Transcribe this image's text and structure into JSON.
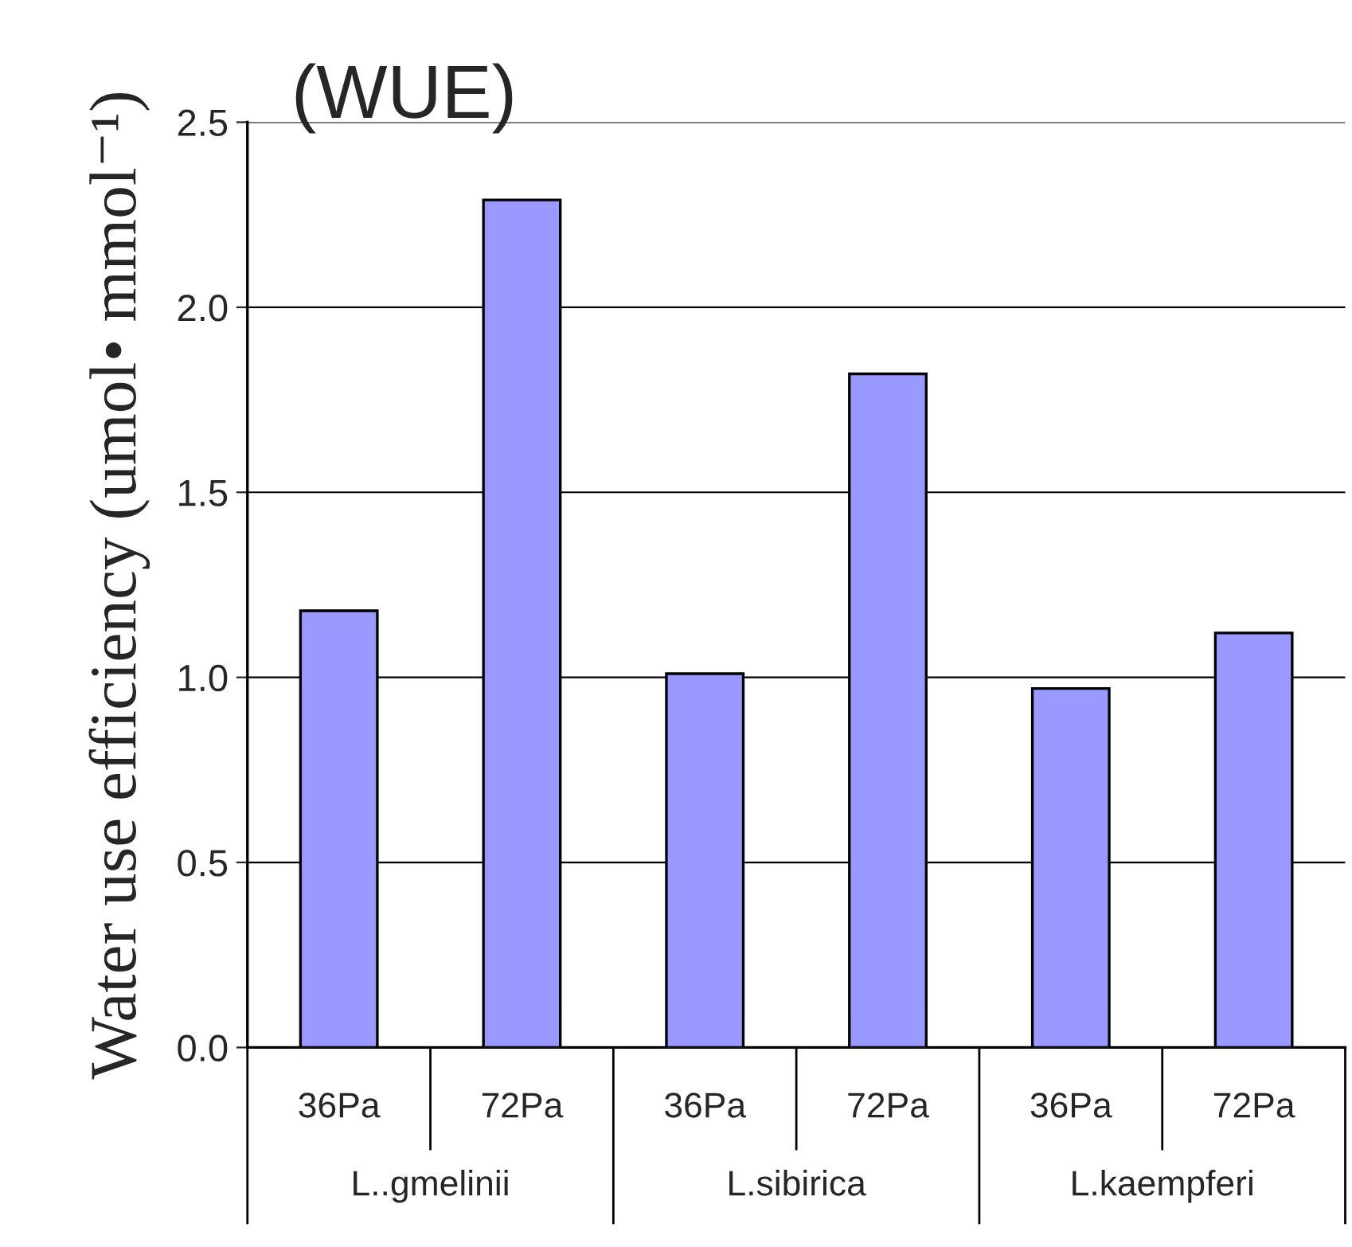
{
  "chart_data": {
    "type": "bar",
    "title": "(WUE)",
    "ylabel": "Water use efficiency (umol• mmol⁻¹)",
    "categories": [
      "36Pa",
      "72Pa",
      "36Pa",
      "72Pa",
      "36Pa",
      "72Pa"
    ],
    "values": [
      1.18,
      2.29,
      1.01,
      1.82,
      0.97,
      1.12
    ],
    "color": "#9999ff",
    "ylim": [
      0,
      2.5
    ],
    "yticks": [
      {
        "value": 0,
        "label": "0.0"
      },
      {
        "value": 0.5,
        "label": "0.5"
      },
      {
        "value": 1,
        "label": "1.0"
      },
      {
        "value": 1.5,
        "label": "1.5"
      },
      {
        "value": 2,
        "label": "2.0"
      },
      {
        "value": 2.5,
        "label": "2.5"
      }
    ],
    "grid": "y",
    "annotations": [
      "L..gmelinii",
      "L.sibirica",
      "L.kaempferi"
    ]
  }
}
